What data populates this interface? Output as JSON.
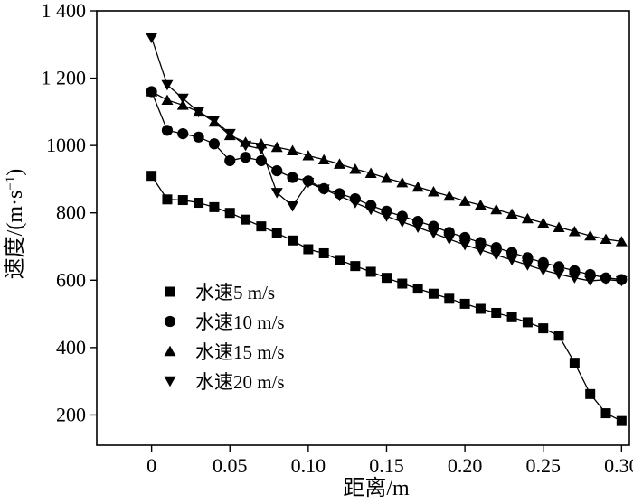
{
  "chart_data": {
    "type": "line",
    "title": "",
    "xlabel": "距离/m",
    "ylabel": "速度/(m·s⁻¹)",
    "ylabel_parts": {
      "main": "速度/(m·s",
      "sup": "−1",
      "close": ")"
    },
    "xlim": [
      -0.035,
      0.305
    ],
    "ylim": [
      110,
      1400
    ],
    "x_ticks": [
      0,
      0.05,
      0.1,
      0.15,
      0.2,
      0.25,
      0.3
    ],
    "x_tick_labels": [
      "0",
      "0.05",
      "0.10",
      "0.15",
      "0.20",
      "0.25",
      "0.30"
    ],
    "y_ticks": [
      200,
      400,
      600,
      800,
      1000,
      1200,
      1400
    ],
    "y_tick_labels": [
      "200",
      "400",
      "600",
      "800",
      "1000",
      "1 200",
      "1 400"
    ],
    "grid": false,
    "legend_position": "bottom-left",
    "series": [
      {
        "name": "水速5 m/s",
        "marker": "square",
        "x": [
          0,
          0.01,
          0.02,
          0.03,
          0.04,
          0.05,
          0.06,
          0.07,
          0.08,
          0.09,
          0.1,
          0.11,
          0.12,
          0.13,
          0.14,
          0.15,
          0.16,
          0.17,
          0.18,
          0.19,
          0.2,
          0.21,
          0.22,
          0.23,
          0.24,
          0.25,
          0.26,
          0.27,
          0.28,
          0.29,
          0.3
        ],
        "y": [
          910,
          840,
          838,
          830,
          817,
          800,
          780,
          760,
          740,
          718,
          692,
          680,
          660,
          642,
          625,
          607,
          590,
          575,
          560,
          545,
          530,
          515,
          503,
          490,
          475,
          457,
          435,
          355,
          262,
          205,
          182
        ]
      },
      {
        "name": "水速10 m/s",
        "marker": "circle",
        "x": [
          0,
          0.01,
          0.02,
          0.03,
          0.04,
          0.05,
          0.06,
          0.07,
          0.08,
          0.09,
          0.1,
          0.11,
          0.12,
          0.13,
          0.14,
          0.15,
          0.16,
          0.17,
          0.18,
          0.19,
          0.2,
          0.21,
          0.22,
          0.23,
          0.24,
          0.25,
          0.26,
          0.27,
          0.28,
          0.29,
          0.3
        ],
        "y": [
          1160,
          1045,
          1035,
          1025,
          1005,
          955,
          965,
          955,
          925,
          905,
          895,
          872,
          857,
          842,
          822,
          805,
          790,
          775,
          760,
          742,
          727,
          712,
          697,
          682,
          667,
          652,
          640,
          628,
          617,
          607,
          602
        ]
      },
      {
        "name": "水速15 m/s",
        "marker": "triangle-up",
        "x": [
          0,
          0.01,
          0.02,
          0.03,
          0.04,
          0.05,
          0.06,
          0.07,
          0.08,
          0.09,
          0.1,
          0.11,
          0.12,
          0.13,
          0.14,
          0.15,
          0.16,
          0.17,
          0.18,
          0.19,
          0.2,
          0.21,
          0.22,
          0.23,
          0.24,
          0.25,
          0.26,
          0.27,
          0.28,
          0.29,
          0.3
        ],
        "y": [
          1160,
          1135,
          1120,
          1100,
          1070,
          1030,
          1010,
          1005,
          995,
          985,
          970,
          958,
          945,
          930,
          918,
          903,
          890,
          877,
          863,
          850,
          835,
          823,
          810,
          797,
          783,
          770,
          757,
          745,
          732,
          722,
          715
        ]
      },
      {
        "name": "水速20 m/s",
        "marker": "triangle-down",
        "x": [
          0,
          0.01,
          0.02,
          0.03,
          0.04,
          0.05,
          0.06,
          0.07,
          0.08,
          0.09,
          0.1,
          0.11,
          0.12,
          0.13,
          0.14,
          0.15,
          0.16,
          0.17,
          0.18,
          0.19,
          0.2,
          0.21,
          0.22,
          0.23,
          0.24,
          0.25,
          0.26,
          0.27,
          0.28,
          0.29,
          0.3
        ],
        "y": [
          1320,
          1180,
          1140,
          1100,
          1075,
          1035,
          1000,
          990,
          860,
          820,
          890,
          870,
          850,
          830,
          810,
          790,
          773,
          757,
          740,
          722,
          705,
          690,
          675,
          660,
          645,
          630,
          618,
          607,
          598,
          602,
          598
        ]
      }
    ]
  }
}
